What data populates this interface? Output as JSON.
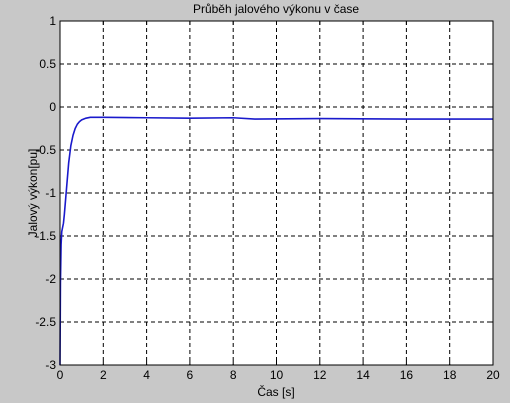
{
  "chart_data": {
    "type": "line",
    "title": "Průběh jalového výkonu v čase",
    "xlabel": "Čas [s]",
    "ylabel": "Jalový výkon[pu]",
    "xlim": [
      0,
      20
    ],
    "ylim": [
      -3,
      1
    ],
    "grid": true,
    "x_ticks": [
      0,
      2,
      4,
      6,
      8,
      10,
      12,
      14,
      16,
      18,
      20
    ],
    "x_tick_labels": [
      "0",
      "2",
      "4",
      "6",
      "8",
      "10",
      "12",
      "14",
      "16",
      "18",
      "20"
    ],
    "y_ticks": [
      1,
      0.5,
      0,
      -0.5,
      -1,
      -1.5,
      -2,
      -2.5,
      -3
    ],
    "y_tick_labels": [
      "1",
      "0.5",
      "0",
      "-0.5",
      "-1",
      "-1.5",
      "-2",
      "-2.5",
      "-3"
    ],
    "series": [
      {
        "color": "#1a1acc",
        "x": [
          0,
          0.02,
          0.05,
          0.08,
          0.12,
          0.16,
          0.2,
          0.3,
          0.4,
          0.5,
          0.6,
          0.7,
          0.8,
          0.9,
          1.0,
          1.2,
          1.4,
          1.6,
          2,
          4,
          6,
          8,
          9,
          12,
          16,
          20
        ],
        "y": [
          -3.0,
          -2.05,
          -1.6,
          -1.45,
          -1.4,
          -1.35,
          -1.25,
          -0.95,
          -0.65,
          -0.45,
          -0.33,
          -0.25,
          -0.2,
          -0.17,
          -0.15,
          -0.13,
          -0.12,
          -0.12,
          -0.12,
          -0.125,
          -0.13,
          -0.125,
          -0.14,
          -0.135,
          -0.14,
          -0.14
        ]
      }
    ]
  }
}
